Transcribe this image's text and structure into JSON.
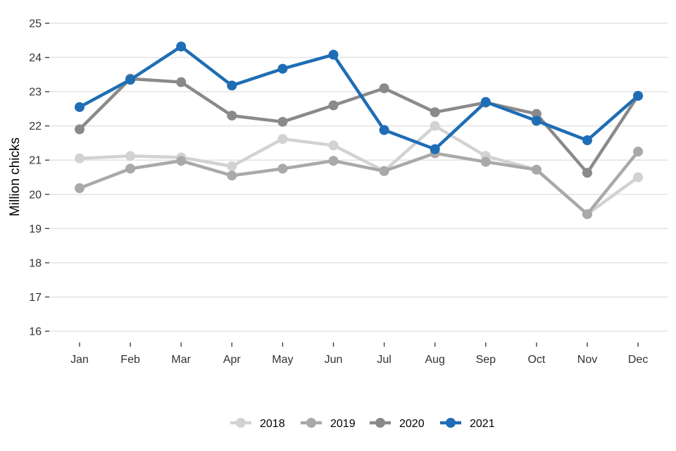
{
  "chart_data": {
    "type": "line",
    "title": "",
    "xlabel": "",
    "ylabel": "Million chicks",
    "ylim": [
      16,
      25
    ],
    "yticks": [
      16,
      17,
      18,
      19,
      20,
      21,
      22,
      23,
      24,
      25
    ],
    "grid": true,
    "legend_position": "bottom",
    "categories": [
      "Jan",
      "Feb",
      "Mar",
      "Apr",
      "May",
      "Jun",
      "Jul",
      "Aug",
      "Sep",
      "Oct",
      "Nov",
      "Dec"
    ],
    "series": [
      {
        "name": "2018",
        "color": "#d2d2d2",
        "values": [
          21.05,
          21.12,
          21.08,
          20.82,
          21.62,
          21.43,
          20.68,
          22.0,
          21.12,
          20.72,
          19.42,
          20.5
        ]
      },
      {
        "name": "2019",
        "color": "#a9a9a9",
        "values": [
          20.18,
          20.75,
          20.98,
          20.55,
          20.75,
          20.98,
          20.68,
          21.2,
          20.95,
          20.72,
          19.42,
          21.25
        ]
      },
      {
        "name": "2020",
        "color": "#8a8a8a",
        "values": [
          21.9,
          23.38,
          23.28,
          22.3,
          22.12,
          22.6,
          23.1,
          22.4,
          22.68,
          22.35,
          20.63,
          22.88
        ]
      },
      {
        "name": "2021",
        "color": "#1f6db5",
        "values": [
          22.55,
          23.35,
          24.32,
          23.18,
          23.67,
          24.08,
          21.88,
          21.32,
          22.7,
          22.15,
          21.58,
          22.88
        ]
      }
    ]
  }
}
